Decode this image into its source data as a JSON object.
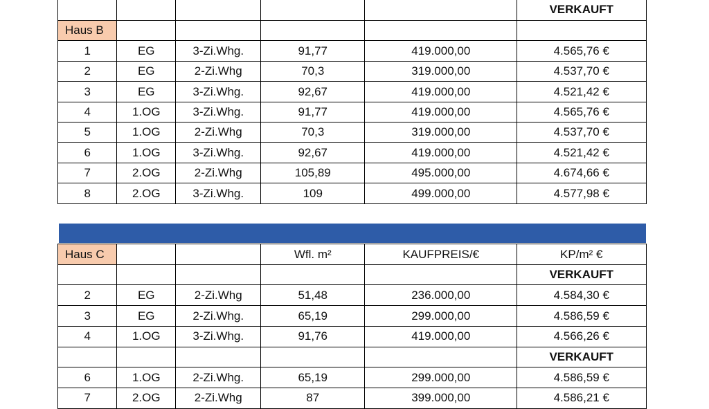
{
  "haus_b": {
    "label": "Haus B",
    "status_top": "VERKAUFT",
    "rows": [
      [
        "1",
        "EG",
        "3-Zi.Whg.",
        "91,77",
        "419.000,00",
        "4.565,76 €"
      ],
      [
        "2",
        "EG",
        "2-Zi.Whg",
        "70,3",
        "319.000,00",
        "4.537,70 €"
      ],
      [
        "3",
        "EG",
        "3-Zi.Whg.",
        "92,67",
        "419.000,00",
        "4.521,42 €"
      ],
      [
        "4",
        "1.OG",
        "3-Zi.Whg.",
        "91,77",
        "419.000,00",
        "4.565,76 €"
      ],
      [
        "5",
        "1.OG",
        "2-Zi.Whg",
        "70,3",
        "319.000,00",
        "4.537,70 €"
      ],
      [
        "6",
        "1.OG",
        "3-Zi.Whg.",
        "92,67",
        "419.000,00",
        "4.521,42 €"
      ],
      [
        "7",
        "2.OG",
        "2-Zi.Whg",
        "105,89",
        "495.000,00",
        "4.674,66 €"
      ],
      [
        "8",
        "2.OG",
        "3-Zi.Whg.",
        "109",
        "499.000,00",
        "4.577,98 €"
      ]
    ]
  },
  "haus_c": {
    "label": "Haus C",
    "header": [
      "Wfl. m²",
      "KAUFPREIS/€",
      "KP/m² €"
    ],
    "rows": [
      {
        "status": "VERKAUFT"
      },
      {
        "cells": [
          "2",
          "EG",
          "2-Zi.Whg",
          "51,48",
          "236.000,00",
          "4.584,30 €"
        ]
      },
      {
        "cells": [
          "3",
          "EG",
          "2-Zi.Whg.",
          "65,19",
          "299.000,00",
          "4.586,59 €"
        ]
      },
      {
        "cells": [
          "4",
          "1.OG",
          "3-Zi.Whg.",
          "91,76",
          "419.000,00",
          "4.566,26 €"
        ]
      },
      {
        "status": "VERKAUFT"
      },
      {
        "cells": [
          "6",
          "1.OG",
          "2-Zi.Whg.",
          "65,19",
          "299.000,00",
          "4.586,59 €"
        ]
      },
      {
        "cells": [
          "7",
          "2.OG",
          "2-Zi.Whg",
          "87",
          "399.000,00",
          "4.586,21 €"
        ]
      }
    ]
  }
}
